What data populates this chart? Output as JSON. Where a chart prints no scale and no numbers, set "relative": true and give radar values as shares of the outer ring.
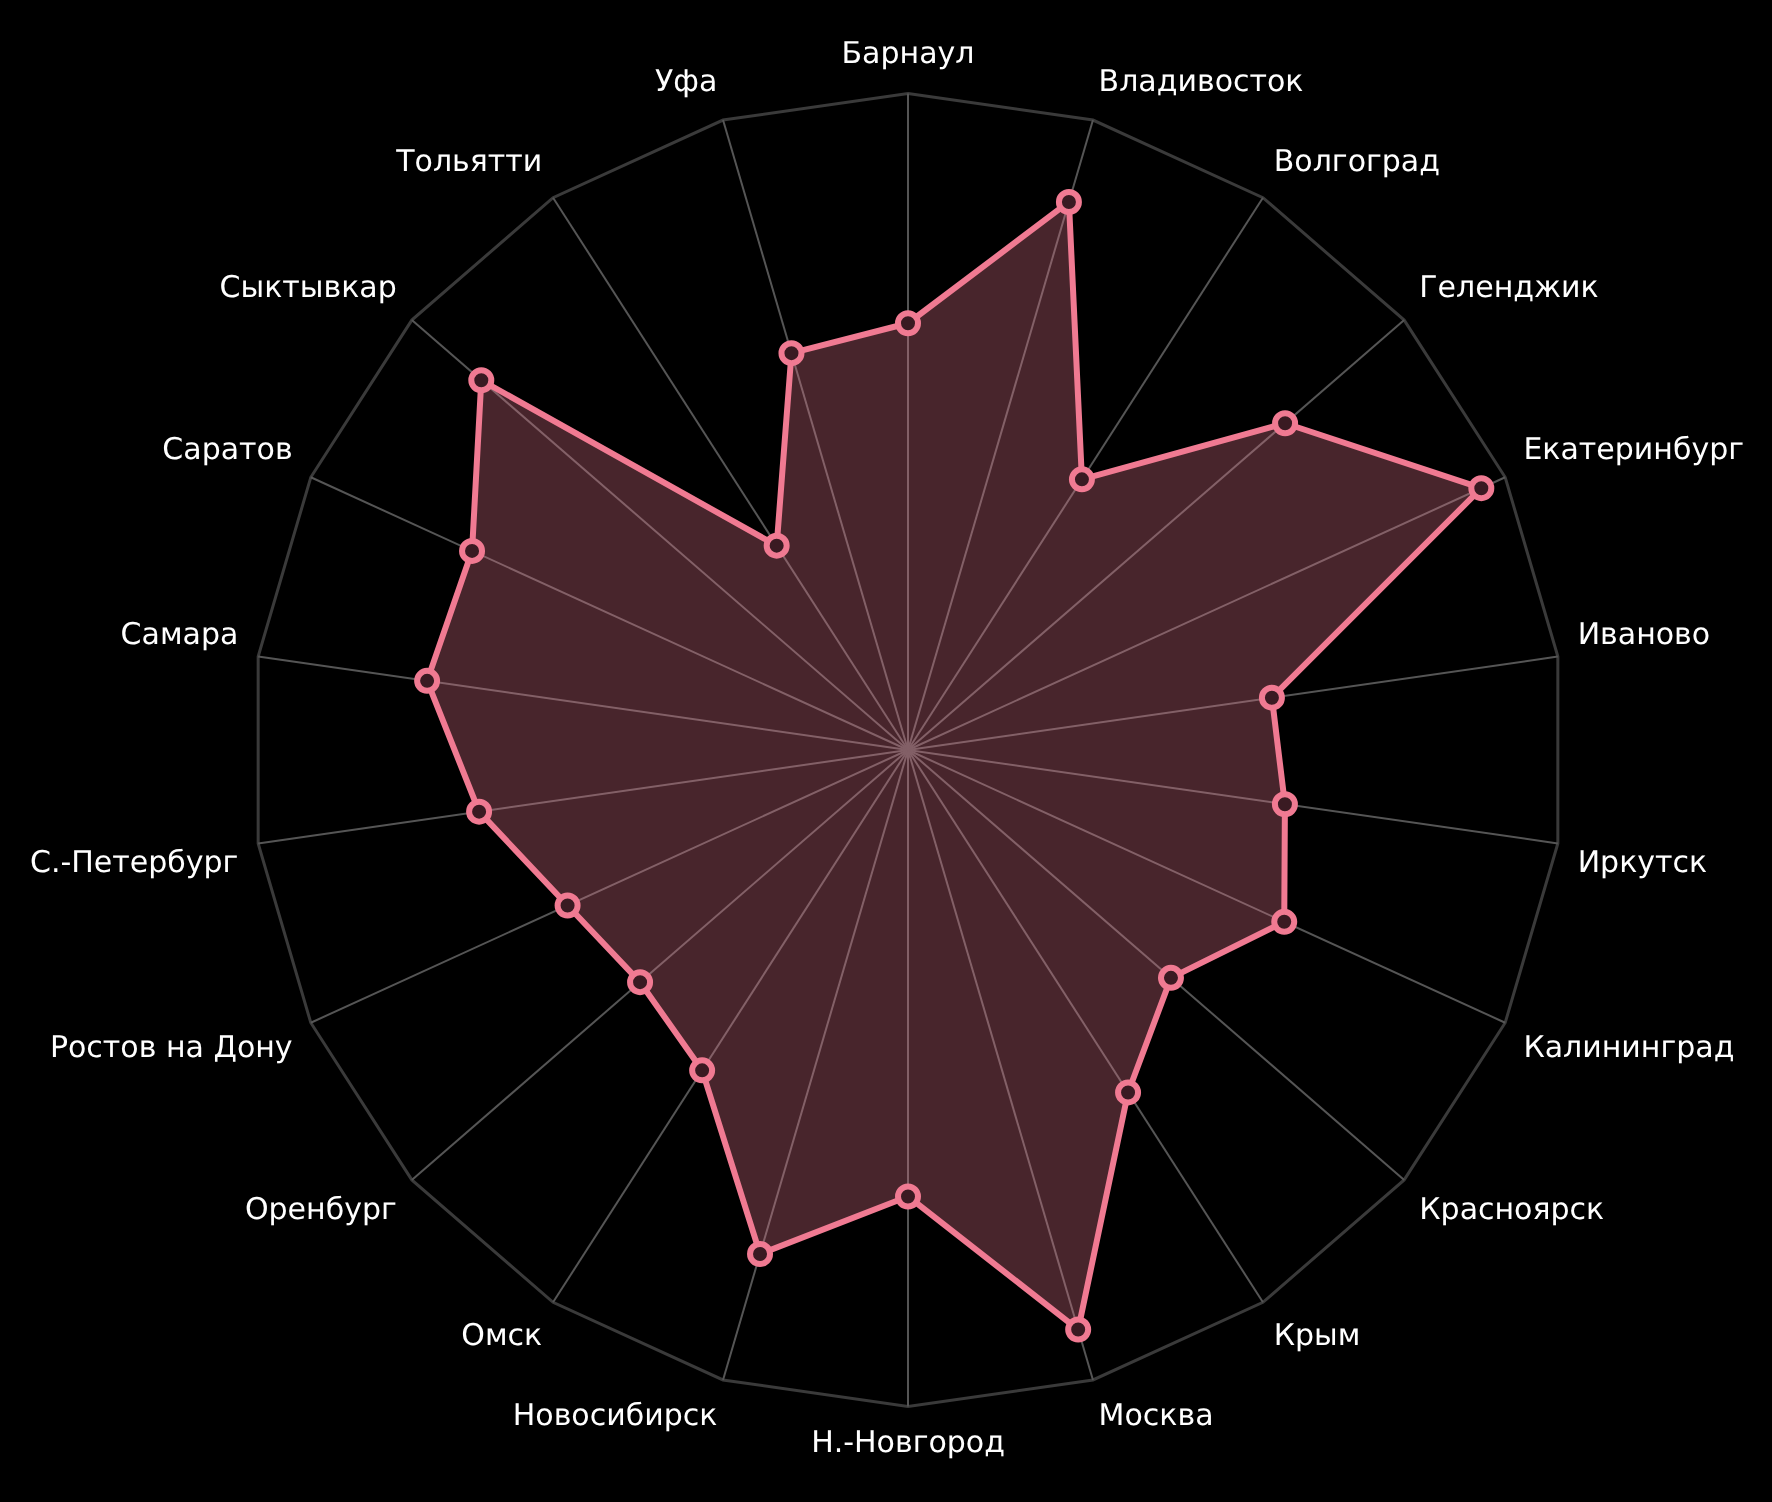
{
  "chart_data": {
    "type": "radar",
    "relative": true,
    "grid": true,
    "marker": "circle",
    "categories": [
      "Барнаул",
      "Владивосток",
      "Волгоград",
      "Геленджик",
      "Екатеринбург",
      "Иваново",
      "Иркутск",
      "Калининград",
      "Красноярск",
      "Крым",
      "Москва",
      "Н.-Новгород",
      "Новосибирск",
      "Омск",
      "Оренбург",
      "Ростов на Дону",
      "С.-Петербург",
      "Самара",
      "Саратов",
      "Сыктывкар",
      "Тольятти",
      "Уфа"
    ],
    "series": [
      {
        "color": "#f07a92",
        "values": [
          0.65,
          0.87,
          0.49,
          0.76,
          0.96,
          0.56,
          0.58,
          0.63,
          0.53,
          0.62,
          0.92,
          0.68,
          0.8,
          0.58,
          0.54,
          0.57,
          0.66,
          0.74,
          0.73,
          0.86,
          0.37,
          0.63
        ]
      }
    ]
  }
}
